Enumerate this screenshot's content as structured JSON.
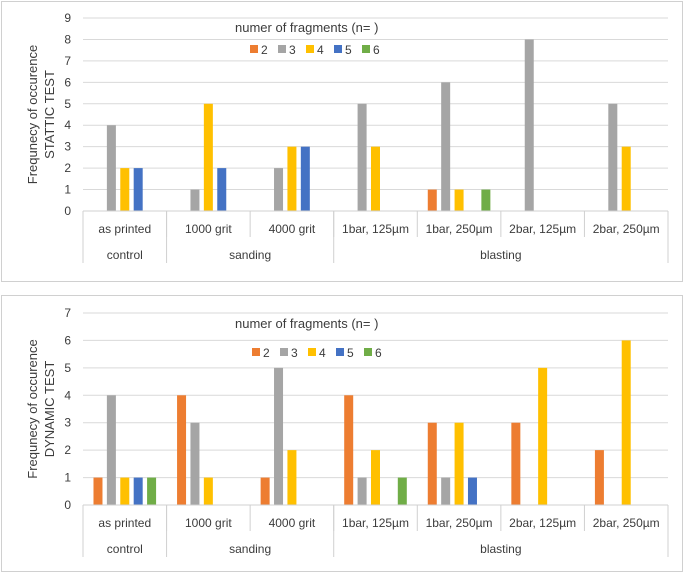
{
  "chart_data": [
    {
      "type": "bar",
      "title": "numer of fragments (n= )",
      "ylabel_line1": "Frequnecy of occurence",
      "ylabel_line2": "STATTIC TEST",
      "ylim": [
        0,
        9
      ],
      "yticks": [
        "0",
        "1",
        "2",
        "3",
        "4",
        "5",
        "6",
        "7",
        "8",
        "9"
      ],
      "categories": [
        "as printed",
        "1000 grit",
        "4000 grit",
        "1bar, 125µm",
        "1bar, 250µm",
        "2bar, 125µm",
        "2bar, 250µm"
      ],
      "groups": [
        {
          "label": "control",
          "span": 1
        },
        {
          "label": "sanding",
          "span": 2
        },
        {
          "label": "blasting",
          "span": 4
        }
      ],
      "legend_position": "top-center",
      "series": [
        {
          "name": "2",
          "color": "#ED7D31",
          "values": [
            0,
            0,
            0,
            0,
            1,
            0,
            0
          ]
        },
        {
          "name": "3",
          "color": "#A5A5A5",
          "values": [
            4,
            1,
            2,
            5,
            6,
            8,
            5
          ]
        },
        {
          "name": "4",
          "color": "#FFC000",
          "values": [
            2,
            5,
            3,
            3,
            1,
            0,
            3
          ]
        },
        {
          "name": "5",
          "color": "#4472C4",
          "values": [
            2,
            2,
            3,
            0,
            0,
            0,
            0
          ]
        },
        {
          "name": "6",
          "color": "#70AD47",
          "values": [
            0,
            0,
            0,
            0,
            1,
            0,
            0
          ]
        }
      ]
    },
    {
      "type": "bar",
      "title": "numer of fragments (n= )",
      "ylabel_line1": "Frequnecy of occurence",
      "ylabel_line2": "DYNAMIC TEST",
      "ylim": [
        0,
        7
      ],
      "yticks": [
        "0",
        "1",
        "2",
        "3",
        "4",
        "5",
        "6",
        "7"
      ],
      "categories": [
        "as printed",
        "1000 grit",
        "4000 grit",
        "1bar, 125µm",
        "1bar, 250µm",
        "2bar, 125µm",
        "2bar, 250µm"
      ],
      "groups": [
        {
          "label": "control",
          "span": 1
        },
        {
          "label": "sanding",
          "span": 2
        },
        {
          "label": "blasting",
          "span": 4
        }
      ],
      "legend_position": "top-center",
      "series": [
        {
          "name": "2",
          "color": "#ED7D31",
          "values": [
            1,
            4,
            1,
            4,
            3,
            3,
            2
          ]
        },
        {
          "name": "3",
          "color": "#A5A5A5",
          "values": [
            4,
            3,
            5,
            1,
            1,
            0,
            0
          ]
        },
        {
          "name": "4",
          "color": "#FFC000",
          "values": [
            1,
            1,
            2,
            2,
            3,
            5,
            6
          ]
        },
        {
          "name": "5",
          "color": "#4472C4",
          "values": [
            1,
            0,
            0,
            0,
            1,
            0,
            0
          ]
        },
        {
          "name": "6",
          "color": "#70AD47",
          "values": [
            1,
            0,
            0,
            1,
            0,
            0,
            0
          ]
        }
      ]
    }
  ]
}
